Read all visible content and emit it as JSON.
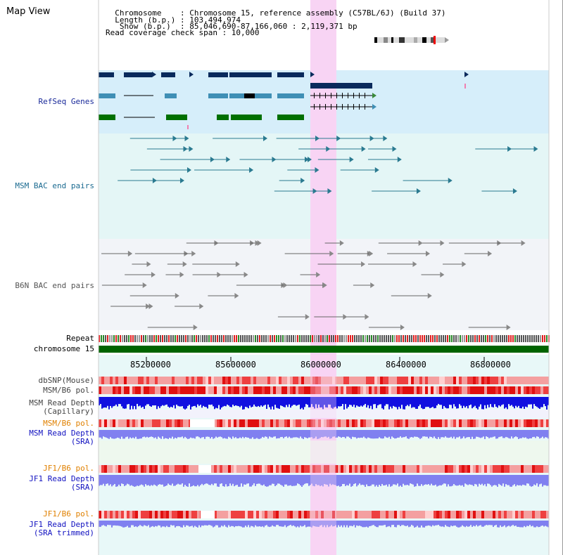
{
  "view_title": "Map View",
  "header": {
    "lines": [
      "  Chromosome    : Chromosome 15, reference assembly (C57BL/6J) (Build 37)",
      "  Length (b.p.) : 103,494,974",
      "   Show (b.p.)  : 85,046,690-87,166,060 : 2,119,371 bp",
      "Read coverage check span : 10,000"
    ]
  },
  "tracks": {
    "refseq": "RefSeq Genes",
    "msm_bac": "MSM BAC end pairs",
    "b6n_bac": "B6N BAC end pairs",
    "repeat": "Repeat",
    "chromosome": "chromosome 15",
    "dbsnp": "dbSNP(Mouse)",
    "msm_b6_pol_1": "MSM/B6 pol.",
    "msm_depth_cap_1": "MSM Read Depth",
    "msm_depth_cap_2": "(Capillary)",
    "msm_b6_pol_2": "MSM/B6 pol.",
    "msm_depth_sra_1": "MSM Read Depth",
    "msm_depth_sra_2": "(SRA)",
    "jf1_b6_pol_1": "JF1/B6 pol.",
    "jf1_depth_sra_1": "JF1 Read Depth",
    "jf1_depth_sra_2": "(SRA)",
    "jf1_b6_pol_2": "JF1/B6 pol.",
    "jf1_depth_trim_1": "JF1 Read Depth",
    "jf1_depth_trim_2": "(SRA trimmed)"
  },
  "axis": {
    "ticks": [
      "85200000",
      "85600000",
      "86000000",
      "86400000",
      "86800000"
    ]
  },
  "colors": {
    "refseq_bg": "#d6eefa",
    "msm_bg": "#e4f6f6",
    "b6n_bg": "#f2f4f8",
    "highlight": "#f8d4f4",
    "chromosome": "#006400",
    "dark_blue": "#0a2a5c",
    "mid_blue": "#3f8fb5",
    "gene_green": "#007000",
    "msm_pair": "#2a7a90",
    "b6n_pair": "#666666",
    "depth_blue": "#1010e0",
    "sra_blue": "#8080f0",
    "pol_red": "#ee2020"
  }
}
